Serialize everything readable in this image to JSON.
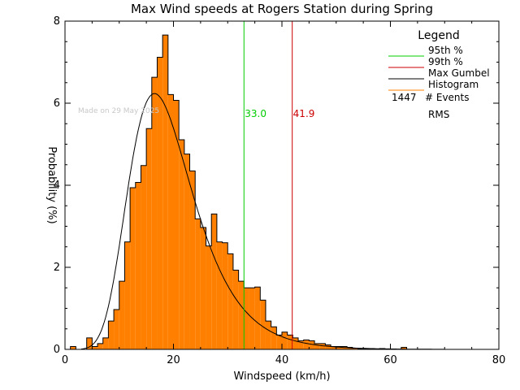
{
  "chart_data": {
    "type": "bar",
    "title": "Max Wind speeds at Rogers Station during Spring",
    "xlabel": "Windspeed (km/h)",
    "ylabel": "Probability (%)",
    "xlim": [
      0,
      80
    ],
    "ylim": [
      0,
      8
    ],
    "xticks": [
      0,
      20,
      40,
      60,
      80
    ],
    "yticks": [
      0,
      2,
      4,
      6,
      8
    ],
    "grid": false,
    "watermark": "Made on 29 May 2025",
    "histogram": {
      "bin_width": 1,
      "bin_starts": [
        1,
        2,
        3,
        4,
        5,
        6,
        7,
        8,
        9,
        10,
        11,
        12,
        13,
        14,
        15,
        16,
        17,
        18,
        19,
        20,
        21,
        22,
        23,
        24,
        25,
        26,
        27,
        28,
        29,
        30,
        31,
        32,
        33,
        34,
        35,
        36,
        37,
        38,
        39,
        40,
        41,
        42,
        43,
        44,
        45,
        46,
        47,
        48,
        49,
        50,
        51,
        52,
        53,
        54,
        55,
        56,
        57,
        58,
        59,
        60,
        61,
        62
      ],
      "values": [
        0.07,
        0,
        0,
        0.28,
        0.07,
        0.14,
        0.28,
        0.69,
        0.97,
        1.66,
        2.62,
        3.94,
        4.07,
        4.48,
        5.38,
        6.63,
        7.12,
        7.66,
        6.21,
        6.07,
        5.11,
        4.76,
        4.35,
        3.18,
        2.97,
        2.52,
        3.3,
        2.62,
        2.6,
        2.33,
        1.93,
        1.66,
        1.5,
        1.5,
        1.52,
        1.2,
        0.69,
        0.55,
        0.35,
        0.42,
        0.35,
        0.28,
        0.21,
        0.23,
        0.21,
        0.14,
        0.14,
        0.11,
        0.07,
        0.07,
        0.07,
        0.05,
        0.03,
        0.02,
        0.02,
        0.02,
        0.01,
        0.02,
        0,
        0.01,
        0,
        0.05
      ]
    },
    "series": [
      {
        "name": "Max Gumbel",
        "color": "#000000",
        "location": 16.5,
        "scale": 5.9
      }
    ],
    "vlines": [
      {
        "name": "95th %",
        "x": 33.0,
        "label": "33.0",
        "color": "#00cc00"
      },
      {
        "name": "99th %",
        "x": 41.9,
        "label": "41.9",
        "color": "#cc0000"
      }
    ],
    "legend": {
      "title": "Legend",
      "placement": "top-right",
      "entries": [
        {
          "label": "95th %",
          "color": "#00cc00"
        },
        {
          "label": "99th %",
          "color": "#cc0000"
        },
        {
          "label": "Max Gumbel",
          "color": "#000000"
        },
        {
          "label": "Histogram",
          "color": "#ff8000"
        }
      ],
      "events_count": "1447",
      "events_label": "# Events",
      "rms_label": "RMS"
    },
    "colors": {
      "bar_fill": "#ff8000",
      "bar_outline": "#000000",
      "axes": "#000000",
      "watermark": "#c8c8c8"
    }
  }
}
